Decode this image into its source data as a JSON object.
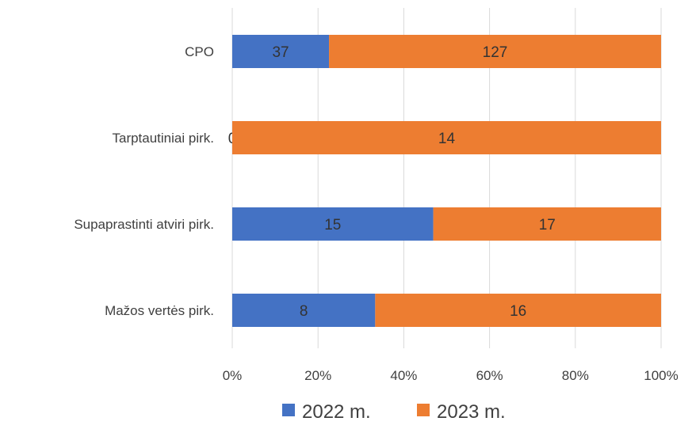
{
  "chart_data": {
    "type": "bar",
    "orientation": "horizontal",
    "stacked": "percent",
    "categories": [
      "CPO",
      "Tarptautiniai pirk.",
      "Supaprastinti atviri pirk.",
      "Mažos vertės pirk."
    ],
    "series": [
      {
        "name": "2022 m.",
        "values": [
          37,
          0,
          15,
          8
        ]
      },
      {
        "name": "2023 m.",
        "values": [
          127,
          14,
          17,
          16
        ]
      }
    ],
    "xlim": [
      0,
      100
    ],
    "xticks": [
      "0%",
      "20%",
      "40%",
      "60%",
      "80%",
      "100%"
    ],
    "grid": true,
    "legend": "bottom",
    "colors": {
      "2022 m.": "#4472C4",
      "2023 m.": "#ED7D31"
    }
  }
}
